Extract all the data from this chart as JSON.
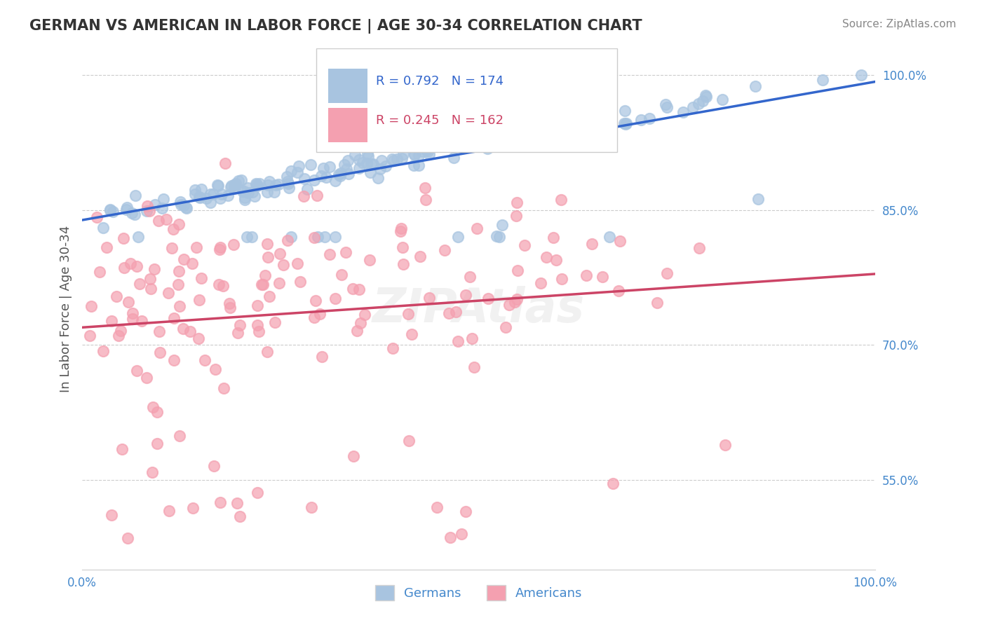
{
  "title": "GERMAN VS AMERICAN IN LABOR FORCE | AGE 30-34 CORRELATION CHART",
  "source_text": "Source: ZipAtlas.com",
  "xlabel": "",
  "ylabel": "In Labor Force | Age 30-34",
  "xlim": [
    0.0,
    1.0
  ],
  "ylim": [
    0.45,
    1.03
  ],
  "yticks": [
    0.55,
    0.7,
    0.85,
    1.0
  ],
  "ytick_labels": [
    "55.0%",
    "70.0%",
    "85.0%",
    "100.0%"
  ],
  "xtick_labels": [
    "0.0%",
    "",
    "",
    "",
    "",
    "",
    "",
    "",
    "",
    "",
    "100.0%"
  ],
  "german_color": "#a8c4e0",
  "american_color": "#f4a0b0",
  "german_line_color": "#3366cc",
  "american_line_color": "#cc4466",
  "tick_color": "#4488cc",
  "german_R": 0.792,
  "german_N": 174,
  "american_R": 0.245,
  "american_N": 162,
  "legend_labels": [
    "Germans",
    "Americans"
  ],
  "background_color": "#ffffff",
  "grid_color": "#cccccc",
  "title_color": "#333333",
  "watermark": "ZIPAtlas",
  "german_seed": 42,
  "american_seed": 99
}
